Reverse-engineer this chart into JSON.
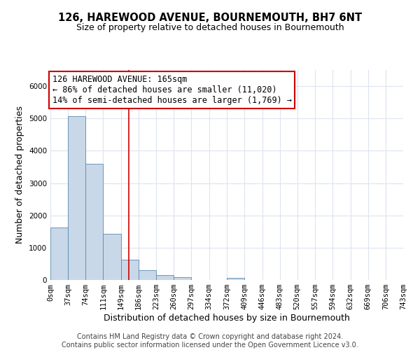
{
  "title": "126, HAREWOOD AVENUE, BOURNEMOUTH, BH7 6NT",
  "subtitle": "Size of property relative to detached houses in Bournemouth",
  "xlabel": "Distribution of detached houses by size in Bournemouth",
  "ylabel": "Number of detached properties",
  "bin_edges": [
    0,
    37,
    74,
    111,
    149,
    186,
    223,
    260,
    297,
    334,
    372,
    409,
    446,
    483,
    520,
    557,
    594,
    632,
    669,
    706,
    743
  ],
  "bar_heights": [
    1630,
    5080,
    3590,
    1430,
    620,
    305,
    150,
    80,
    0,
    0,
    60,
    0,
    0,
    0,
    0,
    0,
    0,
    0,
    0,
    0
  ],
  "bar_color": "#c8d8e8",
  "bar_edge_color": "#5a8ab0",
  "grid_color": "#dde3ee",
  "vline_x": 165,
  "vline_color": "#cc0000",
  "annotation_text": "126 HAREWOOD AVENUE: 165sqm\n← 86% of detached houses are smaller (11,020)\n14% of semi-detached houses are larger (1,769) →",
  "annotation_box_color": "#ffffff",
  "annotation_box_edge_color": "#cc0000",
  "ylim": [
    0,
    6500
  ],
  "tick_labels": [
    "0sqm",
    "37sqm",
    "74sqm",
    "111sqm",
    "149sqm",
    "186sqm",
    "223sqm",
    "260sqm",
    "297sqm",
    "334sqm",
    "372sqm",
    "409sqm",
    "446sqm",
    "483sqm",
    "520sqm",
    "557sqm",
    "594sqm",
    "632sqm",
    "669sqm",
    "706sqm",
    "743sqm"
  ],
  "footer_line1": "Contains HM Land Registry data © Crown copyright and database right 2024.",
  "footer_line2": "Contains public sector information licensed under the Open Government Licence v3.0.",
  "title_fontsize": 10.5,
  "subtitle_fontsize": 9,
  "axis_label_fontsize": 9,
  "tick_fontsize": 7.5,
  "annotation_fontsize": 8.5,
  "footer_fontsize": 7
}
